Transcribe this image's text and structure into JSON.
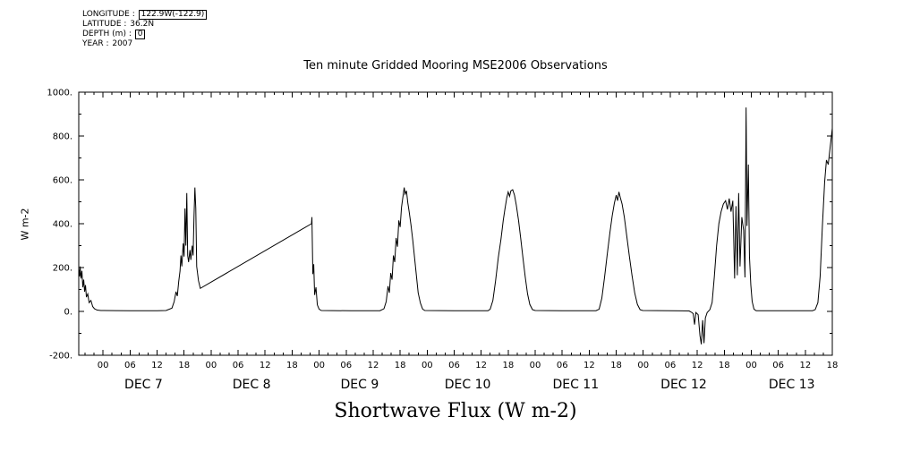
{
  "metadata": {
    "lines": [
      {
        "label": "LONGITUDE : ",
        "value": "122.9W(-122.9)"
      },
      {
        "label": "LATITUDE : ",
        "value": "36.2N"
      },
      {
        "label": "DEPTH (m) : ",
        "value": "0"
      },
      {
        "label": "YEAR : ",
        "value": "2007"
      }
    ]
  },
  "chart_data": {
    "type": "line",
    "title": "Ten minute Gridded Mooring MSE2006 Observations",
    "xlabel": "Shortwave Flux (W m-2)",
    "ylabel": "W m-2",
    "ylim": [
      -200,
      1000
    ],
    "grid": false,
    "legend": "none",
    "x_range_hours": [
      -5.4,
      162
    ],
    "x_epoch": "hours since 2007-12-07 00:00",
    "x_major_step_h": 6,
    "x_minor_step_h": 2,
    "x_major_start_h": 0,
    "x_tick_label_cycle": [
      "00",
      "06",
      "12",
      "18"
    ],
    "day_labels": [
      "DEC 7",
      "DEC 8",
      "DEC 9",
      "DEC 10",
      "DEC 11",
      "DEC 12",
      "DEC 13"
    ],
    "day_label_first_center_h": 9,
    "day_label_spacing_h": 24,
    "y_ticks": [
      {
        "v": 1000,
        "label": "1000."
      },
      {
        "v": 800,
        "label": "800."
      },
      {
        "v": 600,
        "label": "600."
      },
      {
        "v": 400,
        "label": "400."
      },
      {
        "v": 200,
        "label": "200."
      },
      {
        "v": 0,
        "label": "0."
      },
      {
        "v": -200,
        "label": "-200."
      }
    ],
    "y_minor_step": 100,
    "line_color": "#000000",
    "series": [
      {
        "name": "shortwave_flux",
        "units": "W m-2",
        "points": [
          [
            -5.4,
            195
          ],
          [
            -5.2,
            160
          ],
          [
            -5.1,
            205
          ],
          [
            -4.9,
            150
          ],
          [
            -4.7,
            185
          ],
          [
            -4.5,
            110
          ],
          [
            -4.3,
            145
          ],
          [
            -4.1,
            90
          ],
          [
            -3.9,
            120
          ],
          [
            -3.7,
            65
          ],
          [
            -3.4,
            80
          ],
          [
            -3.1,
            40
          ],
          [
            -2.7,
            50
          ],
          [
            -2.3,
            22
          ],
          [
            -1.9,
            12
          ],
          [
            -1.3,
            6
          ],
          [
            -0.5,
            4
          ],
          [
            0,
            4
          ],
          [
            6,
            3
          ],
          [
            12,
            3
          ],
          [
            14,
            4
          ],
          [
            15.3,
            15
          ],
          [
            15.8,
            45
          ],
          [
            16.2,
            90
          ],
          [
            16.5,
            70
          ],
          [
            16.8,
            135
          ],
          [
            17.1,
            185
          ],
          [
            17.3,
            255
          ],
          [
            17.5,
            205
          ],
          [
            17.8,
            310
          ],
          [
            18.0,
            250
          ],
          [
            18.2,
            470
          ],
          [
            18.4,
            300
          ],
          [
            18.6,
            540
          ],
          [
            18.8,
            255
          ],
          [
            19.0,
            225
          ],
          [
            19.3,
            280
          ],
          [
            19.5,
            235
          ],
          [
            19.8,
            300
          ],
          [
            20.0,
            255
          ],
          [
            20.2,
            430
          ],
          [
            20.4,
            565
          ],
          [
            20.6,
            470
          ],
          [
            20.8,
            205
          ],
          [
            21.2,
            140
          ],
          [
            21.6,
            105
          ],
          [
            46.3,
            400
          ],
          [
            46.4,
            430
          ],
          [
            46.6,
            170
          ],
          [
            46.8,
            215
          ],
          [
            47.0,
            75
          ],
          [
            47.3,
            110
          ],
          [
            47.6,
            30
          ],
          [
            48.0,
            10
          ],
          [
            48.5,
            4
          ],
          [
            55,
            3
          ],
          [
            61.5,
            3
          ],
          [
            62.4,
            12
          ],
          [
            62.9,
            45
          ],
          [
            63.3,
            115
          ],
          [
            63.6,
            85
          ],
          [
            63.9,
            175
          ],
          [
            64.2,
            145
          ],
          [
            64.5,
            255
          ],
          [
            64.8,
            225
          ],
          [
            65.1,
            335
          ],
          [
            65.4,
            295
          ],
          [
            65.7,
            415
          ],
          [
            66.0,
            385
          ],
          [
            66.3,
            475
          ],
          [
            66.6,
            520
          ],
          [
            66.9,
            565
          ],
          [
            67.1,
            535
          ],
          [
            67.4,
            550
          ],
          [
            67.7,
            495
          ],
          [
            68.0,
            455
          ],
          [
            68.4,
            395
          ],
          [
            68.8,
            325
          ],
          [
            69.2,
            245
          ],
          [
            69.6,
            165
          ],
          [
            70.0,
            85
          ],
          [
            70.5,
            38
          ],
          [
            71.0,
            10
          ],
          [
            71.5,
            4
          ],
          [
            78,
            3
          ],
          [
            85.5,
            3
          ],
          [
            86.0,
            10
          ],
          [
            86.6,
            50
          ],
          [
            87.2,
            140
          ],
          [
            87.8,
            245
          ],
          [
            88.4,
            330
          ],
          [
            88.9,
            415
          ],
          [
            89.3,
            470
          ],
          [
            89.7,
            520
          ],
          [
            90.0,
            545
          ],
          [
            90.3,
            525
          ],
          [
            90.6,
            550
          ],
          [
            91.0,
            555
          ],
          [
            91.4,
            530
          ],
          [
            91.8,
            485
          ],
          [
            92.3,
            415
          ],
          [
            92.8,
            330
          ],
          [
            93.3,
            240
          ],
          [
            93.8,
            155
          ],
          [
            94.3,
            80
          ],
          [
            94.8,
            32
          ],
          [
            95.4,
            8
          ],
          [
            96.0,
            4
          ],
          [
            102,
            3
          ],
          [
            109.5,
            3
          ],
          [
            110.2,
            10
          ],
          [
            110.8,
            60
          ],
          [
            111.4,
            155
          ],
          [
            112.0,
            260
          ],
          [
            112.6,
            360
          ],
          [
            113.1,
            435
          ],
          [
            113.6,
            495
          ],
          [
            114.0,
            530
          ],
          [
            114.3,
            505
          ],
          [
            114.6,
            545
          ],
          [
            114.9,
            520
          ],
          [
            115.3,
            490
          ],
          [
            115.8,
            430
          ],
          [
            116.3,
            350
          ],
          [
            116.9,
            255
          ],
          [
            117.5,
            165
          ],
          [
            118.1,
            85
          ],
          [
            118.7,
            32
          ],
          [
            119.3,
            8
          ],
          [
            119.9,
            4
          ],
          [
            126,
            3
          ],
          [
            130.2,
            2
          ],
          [
            130.8,
            -5
          ],
          [
            131.1,
            -10
          ],
          [
            131.4,
            -60
          ],
          [
            131.7,
            -5
          ],
          [
            132.2,
            -15
          ],
          [
            132.6,
            -110
          ],
          [
            132.9,
            -150
          ],
          [
            133.2,
            -40
          ],
          [
            133.5,
            -145
          ],
          [
            133.8,
            -30
          ],
          [
            134.2,
            -5
          ],
          [
            134.8,
            8
          ],
          [
            135.3,
            40
          ],
          [
            135.8,
            160
          ],
          [
            136.3,
            300
          ],
          [
            136.8,
            400
          ],
          [
            137.3,
            455
          ],
          [
            137.8,
            490
          ],
          [
            138.3,
            505
          ],
          [
            138.7,
            465
          ],
          [
            139.1,
            515
          ],
          [
            139.5,
            455
          ],
          [
            139.9,
            505
          ],
          [
            140.3,
            150
          ],
          [
            140.6,
            480
          ],
          [
            140.9,
            165
          ],
          [
            141.2,
            540
          ],
          [
            141.5,
            205
          ],
          [
            141.9,
            430
          ],
          [
            142.3,
            370
          ],
          [
            142.6,
            155
          ],
          [
            142.85,
            930
          ],
          [
            143.05,
            390
          ],
          [
            143.35,
            670
          ],
          [
            143.6,
            250
          ],
          [
            143.9,
            120
          ],
          [
            144.2,
            45
          ],
          [
            144.6,
            10
          ],
          [
            145.1,
            3
          ],
          [
            150,
            3
          ],
          [
            157.6,
            3
          ],
          [
            158.2,
            8
          ],
          [
            158.8,
            40
          ],
          [
            159.3,
            160
          ],
          [
            159.8,
            390
          ],
          [
            160.3,
            590
          ],
          [
            160.7,
            690
          ],
          [
            161.1,
            670
          ],
          [
            161.5,
            745
          ],
          [
            162,
            835
          ]
        ]
      }
    ]
  }
}
